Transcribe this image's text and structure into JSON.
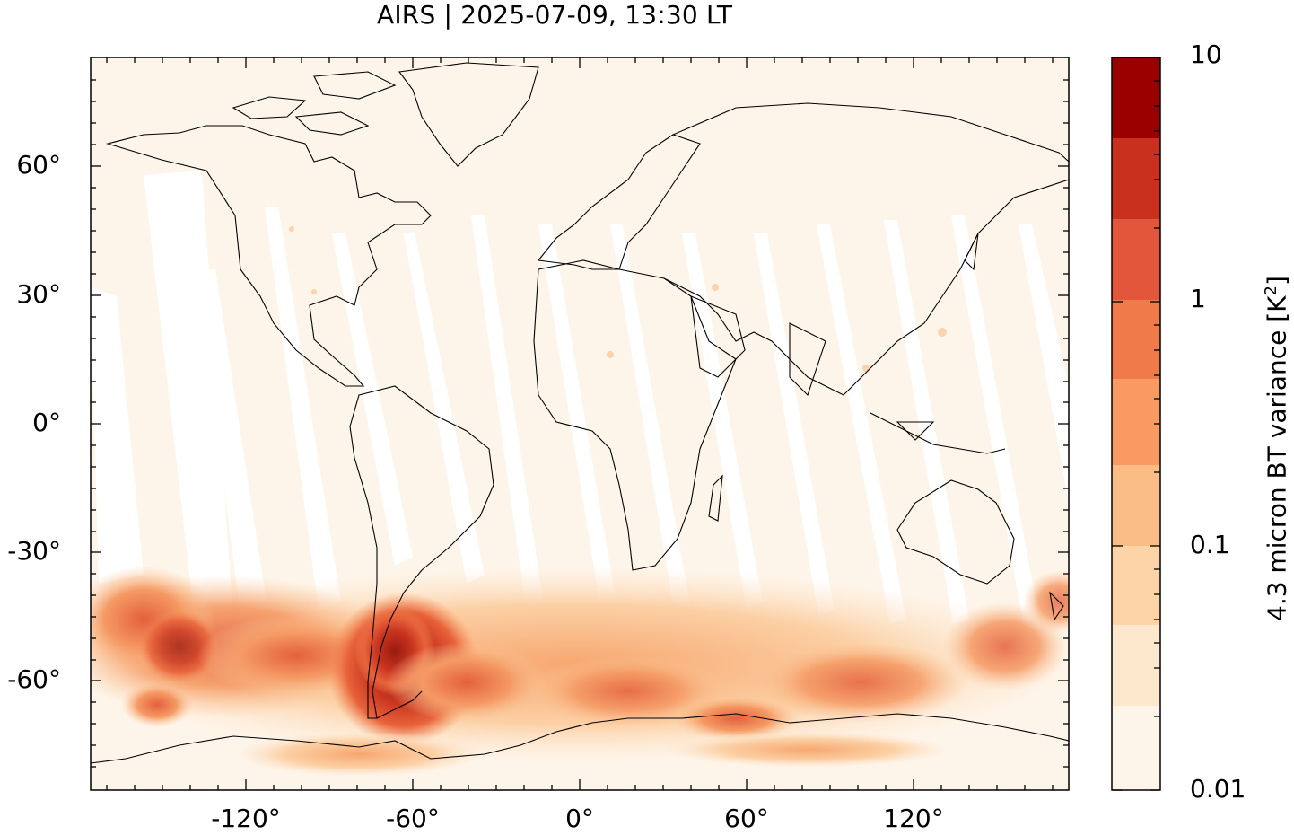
{
  "header": {
    "title": "AIRS | 2025-07-09, 13:30 LT"
  },
  "map": {
    "projection": "equirectangular",
    "lat_ticks": [
      "60°",
      "30°",
      "0°",
      "-30°",
      "-60°"
    ],
    "lon_ticks": [
      "-120°",
      "-60°",
      "0°",
      "60°",
      "120°"
    ]
  },
  "colorbar": {
    "label_prefix": "4.3 micron BT variance [K",
    "label_sup": "2",
    "label_suffix": "]",
    "tick_labels": [
      "10",
      "1",
      "0.1",
      "0.01"
    ],
    "scale": "log",
    "range": [
      0.01,
      10
    ],
    "colors": [
      "#fff5eb",
      "#fee6ce",
      "#fdd0a2",
      "#fdae6b",
      "#fd8d3c",
      "#f16913",
      "#d94801",
      "#e2563b",
      "#c9301e",
      "#9a0000"
    ]
  }
}
